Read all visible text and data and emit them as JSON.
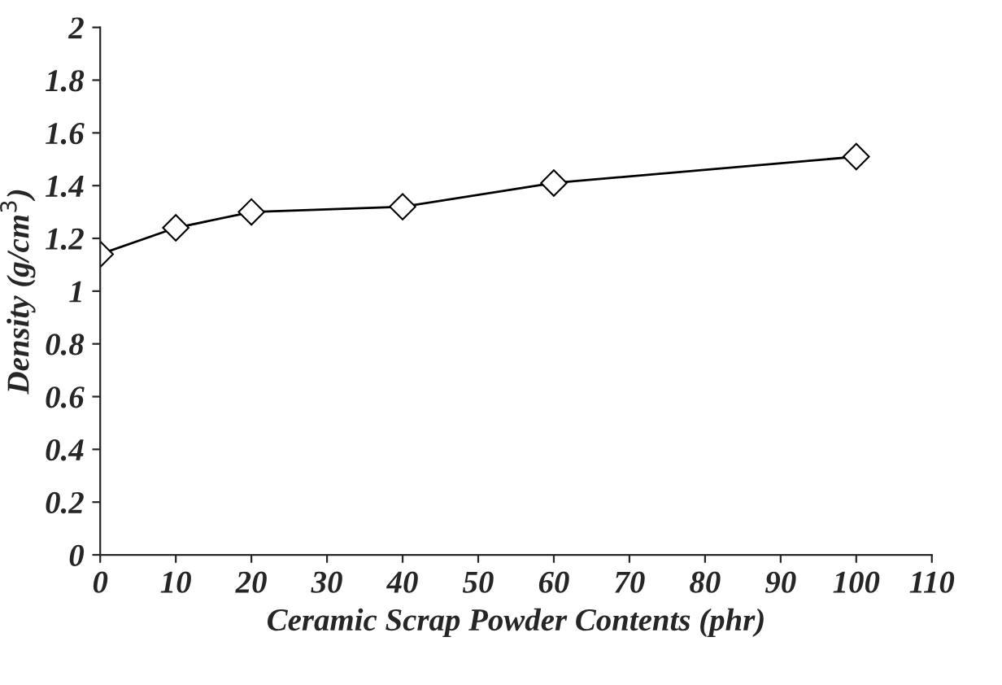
{
  "chart_data": {
    "type": "line",
    "xlabel": "Ceramic Scrap Powder Contents (phr)",
    "ylabel": "Density (g/cm$^{3}$)",
    "x": [
      0,
      10,
      20,
      40,
      60,
      100
    ],
    "series": [
      {
        "color": "#000000",
        "values": [
          1.14,
          1.24,
          1.3,
          1.32,
          1.41,
          1.51
        ]
      }
    ],
    "marker": "diamond",
    "line_style": "solid",
    "grid": false,
    "legend": false,
    "xlim": [
      0,
      110
    ],
    "xticks": [
      0,
      10,
      20,
      30,
      40,
      50,
      60,
      70,
      80,
      90,
      100,
      110
    ],
    "ylim": [
      0,
      2
    ],
    "yticks": [
      0,
      {
        "value": 0.2,
        "label": "0.2"
      },
      {
        "value": 0.4,
        "label": "0.4"
      },
      {
        "value": 0.6,
        "label": "0.6"
      },
      {
        "value": 0.8,
        "label": "0.8"
      },
      1,
      {
        "value": 1.2,
        "label": "1.2"
      },
      {
        "value": 1.4,
        "label": "1.4"
      },
      {
        "value": 1.6,
        "label": "1.6"
      },
      {
        "value": 1.8,
        "label": "1.8"
      },
      2
    ]
  }
}
